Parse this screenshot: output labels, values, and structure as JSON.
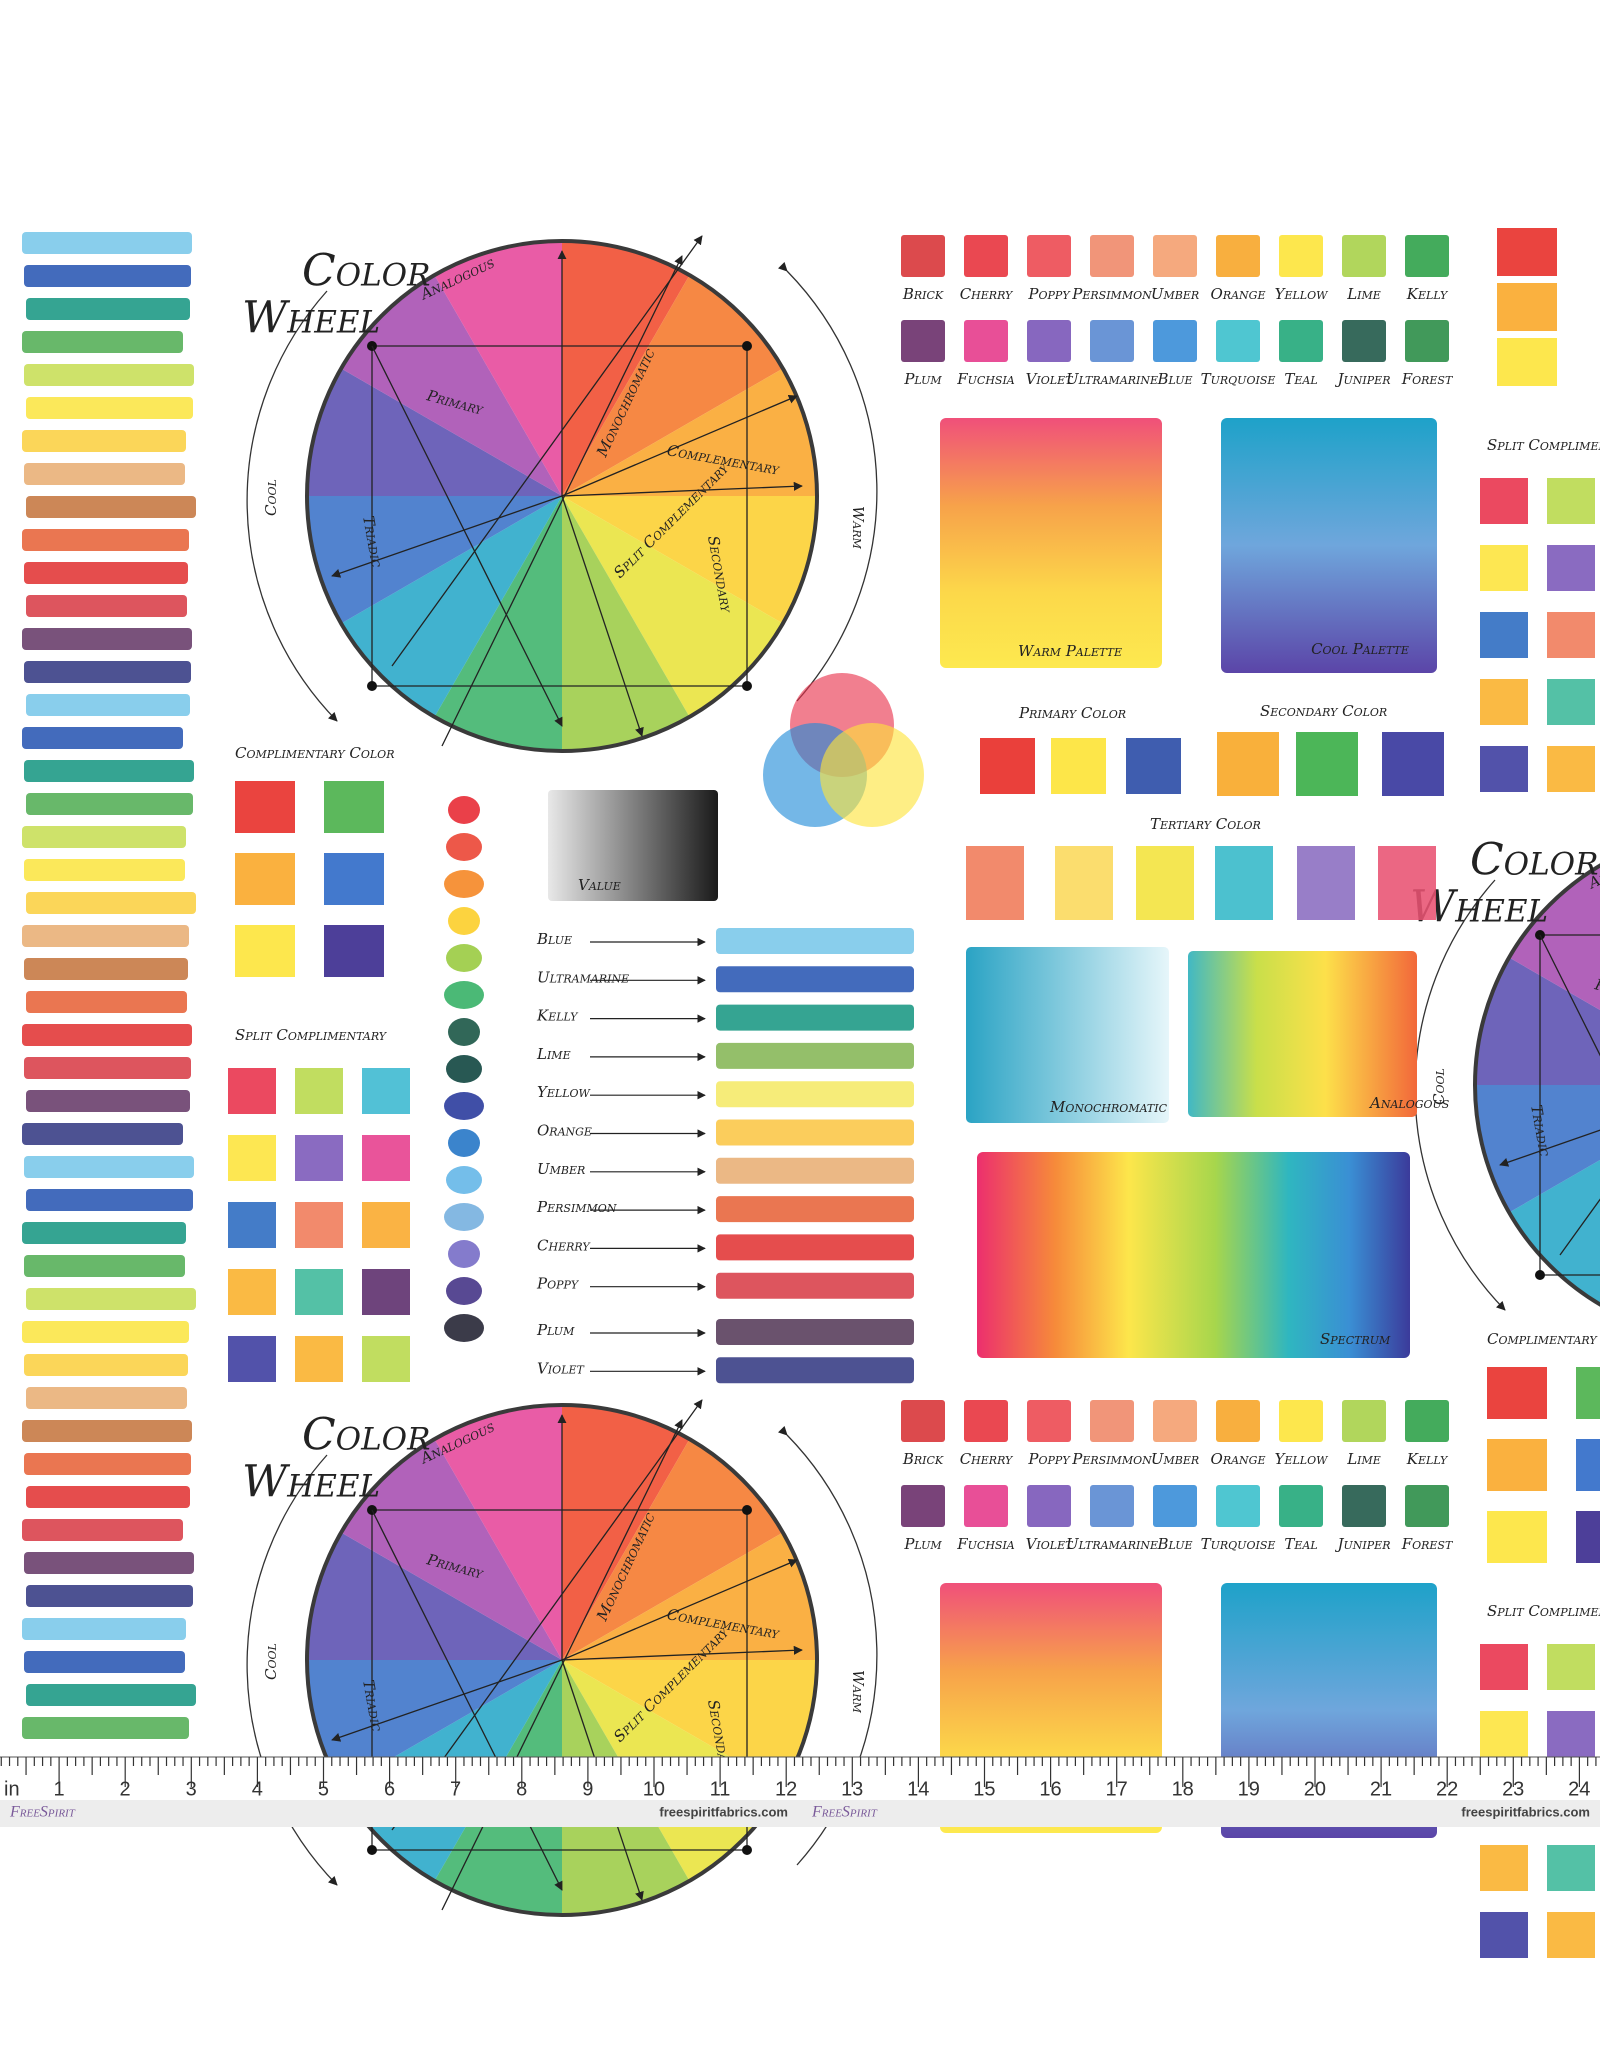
{
  "wheel": {
    "title": [
      "Color",
      "Wheel"
    ],
    "labels": [
      "Analogous",
      "Primary",
      "Monochromatic",
      "Complementary",
      "Secondary",
      "Triadic",
      "Split Complementary"
    ],
    "sides": [
      "Cool",
      "Warm"
    ]
  },
  "swatches": {
    "row1": [
      "Brick",
      "Cherry",
      "Poppy",
      "Persimmon",
      "Umber",
      "Orange",
      "Yellow",
      "Lime",
      "Kelly"
    ],
    "row2": [
      "Plum",
      "Fuchsia",
      "Violet",
      "Ultramarine",
      "Blue",
      "Turquoise",
      "Teal",
      "Juniper",
      "Forest"
    ]
  },
  "palettes": {
    "warm": "Warm Palette",
    "cool": "Cool Palette"
  },
  "primary": "Primary Color",
  "secondary": "Secondary Color",
  "tertiary": "Tertiary Color",
  "blends": [
    "Monochromatic",
    "Analogous",
    "Spectrum"
  ],
  "complementary": "Complimentary Color",
  "split": "Split Complimentary",
  "value": "Value",
  "mixing": [
    "Blue",
    "Ultramarine",
    "Kelly",
    "Lime",
    "Yellow",
    "Orange",
    "Umber",
    "Persimmon",
    "Cherry",
    "Poppy",
    "Plum",
    "Violet"
  ],
  "ruler": {
    "unit": "in",
    "marks": [
      1,
      2,
      3,
      4,
      5,
      6,
      7,
      8,
      9,
      10,
      11,
      12,
      13,
      14,
      15,
      16,
      17,
      18,
      19,
      20,
      21,
      22,
      23,
      24
    ],
    "brand": "FreeSpirit",
    "site": "freespiritfabrics.com"
  }
}
